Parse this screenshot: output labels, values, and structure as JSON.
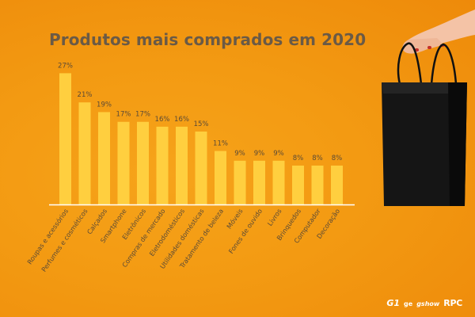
{
  "chart_data": {
    "type": "bar",
    "title": "Produtos mais comprados em 2020",
    "categories": [
      "Roupas e acessórios",
      "Perfumes e cosméticos",
      "Calçados",
      "Smartphone",
      "Eletrônicos",
      "Compras de mercado",
      "Eletrodomésticos",
      "Utilidades domésticas",
      "Tratamento de beleza",
      "Móveis",
      "Fones de ouvido",
      "Livros",
      "Brinquedos",
      "Computador",
      "Decoração"
    ],
    "values": [
      27,
      21,
      19,
      17,
      17,
      16,
      16,
      15,
      11,
      9,
      9,
      9,
      8,
      8,
      8
    ],
    "data_labels": [
      "27%",
      "21%",
      "19%",
      "17%",
      "17%",
      "16%",
      "16%",
      "15%",
      "11%",
      "9%",
      "9%",
      "9%",
      "8%",
      "8%",
      "8%"
    ],
    "unit": "%",
    "xlabel": "",
    "ylabel": "",
    "ylim": [
      0,
      30
    ],
    "grid": false,
    "legend": "none"
  },
  "colors": {
    "bar": "#ffcf3f",
    "background": "#f39a12",
    "title": "#6a5a46",
    "label": "#5b4a36",
    "baseline": "#ffffff",
    "bag": "#111111"
  },
  "logos": {
    "g1": "G1",
    "ge": "ge",
    "gshow": "gshow",
    "rpc": "RPC"
  }
}
